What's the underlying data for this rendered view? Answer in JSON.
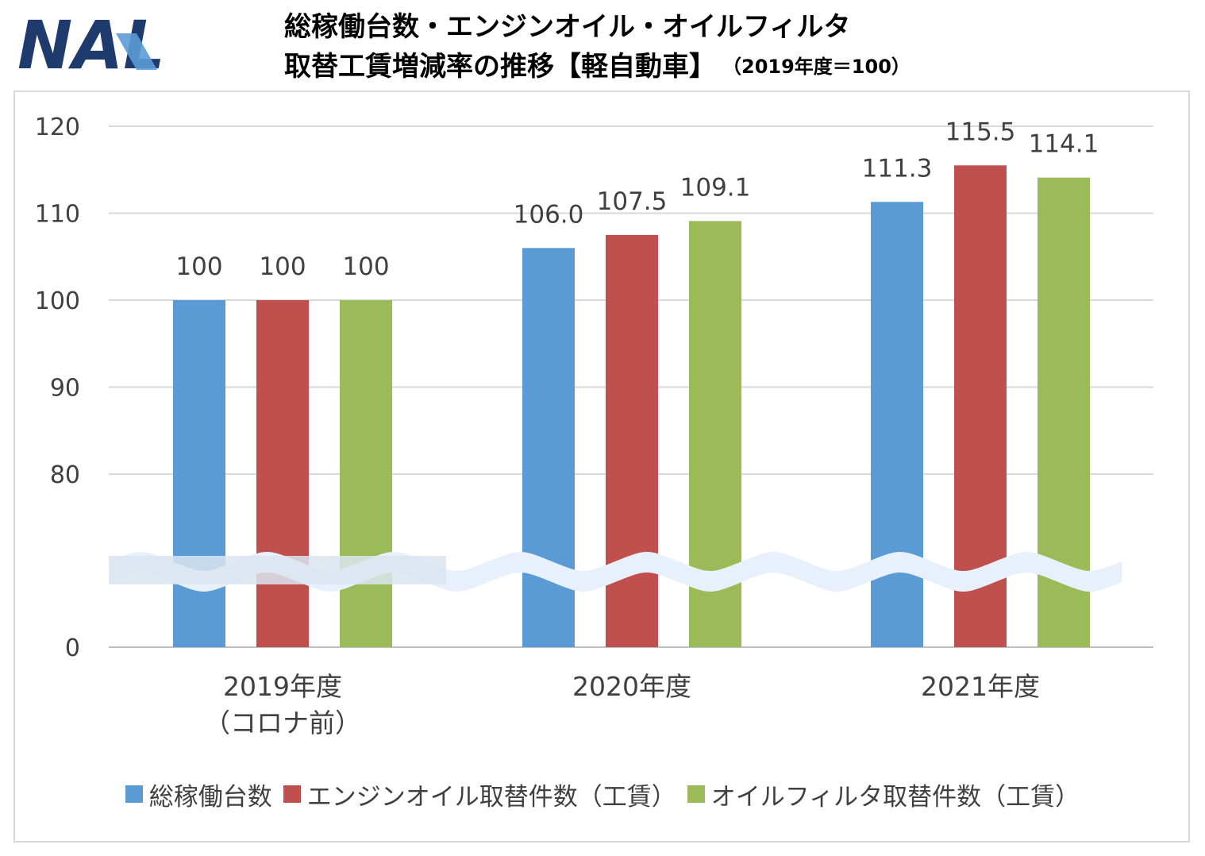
{
  "logo": {
    "text": "NAL",
    "color": "#1f3b6e",
    "accent": "#5b9bd5"
  },
  "title": {
    "line1": "総稼働台数・エンジンオイル・オイルフィルタ",
    "line2": "取替工賃増減率の推移【軽自動車】",
    "note": "（2019年度＝100）"
  },
  "chart_data": {
    "type": "bar",
    "categories": [
      [
        "2019年度",
        "（コロナ前）"
      ],
      [
        "2020年度"
      ],
      [
        "2021年度"
      ]
    ],
    "series": [
      {
        "name": "総稼働台数",
        "values": [
          100,
          106.0,
          111.3
        ],
        "labels": [
          "100",
          "106.0",
          "111.3"
        ],
        "color": "#5b9bd5"
      },
      {
        "name": "エンジンオイル取替件数（工賃）",
        "values": [
          100,
          107.5,
          115.5
        ],
        "labels": [
          "100",
          "107.5",
          "115.5"
        ],
        "color": "#c0504d"
      },
      {
        "name": "オイルフィルタ取替件数（工賃）",
        "values": [
          100,
          109.1,
          114.1
        ],
        "labels": [
          "100",
          "109.1",
          "114.1"
        ],
        "color": "#9bbb59"
      }
    ],
    "yticks": [
      0,
      80,
      90,
      100,
      110,
      120
    ],
    "ylim": [
      0,
      120
    ],
    "axis_break": [
      0,
      80
    ],
    "grid": true,
    "legend": "bottom"
  }
}
